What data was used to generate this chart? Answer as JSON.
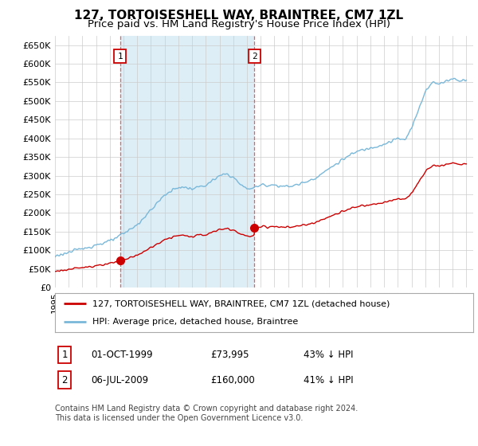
{
  "title": "127, TORTOISESHELL WAY, BRAINTREE, CM7 1ZL",
  "subtitle": "Price paid vs. HM Land Registry's House Price Index (HPI)",
  "ylim": [
    0,
    675000
  ],
  "yticks": [
    0,
    50000,
    100000,
    150000,
    200000,
    250000,
    300000,
    350000,
    400000,
    450000,
    500000,
    550000,
    600000,
    650000
  ],
  "ytick_labels": [
    "£0",
    "£50K",
    "£100K",
    "£150K",
    "£200K",
    "£250K",
    "£300K",
    "£350K",
    "£400K",
    "£450K",
    "£500K",
    "£550K",
    "£600K",
    "£650K"
  ],
  "hpi_color": "#7ab8d9",
  "hpi_fill_color": "#ddeef7",
  "price_color": "#cc0000",
  "vline_color": "#ff5555",
  "sale1_x": 1999.75,
  "sale1_price": 73995,
  "sale2_x": 2009.54,
  "sale2_price": 160000,
  "legend_house_label": "127, TORTOISESHELL WAY, BRAINTREE, CM7 1ZL (detached house)",
  "legend_hpi_label": "HPI: Average price, detached house, Braintree",
  "table_rows": [
    {
      "num": "1",
      "date": "01-OCT-1999",
      "price": "£73,995",
      "change": "43% ↓ HPI"
    },
    {
      "num": "2",
      "date": "06-JUL-2009",
      "price": "£160,000",
      "change": "41% ↓ HPI"
    }
  ],
  "footnote": "Contains HM Land Registry data © Crown copyright and database right 2024.\nThis data is licensed under the Open Government Licence v3.0.",
  "background_color": "#ffffff",
  "grid_color": "#cccccc",
  "title_fontsize": 11,
  "subtitle_fontsize": 9.5,
  "tick_fontsize": 8,
  "legend_fontsize": 8,
  "table_fontsize": 8.5,
  "footnote_fontsize": 7
}
